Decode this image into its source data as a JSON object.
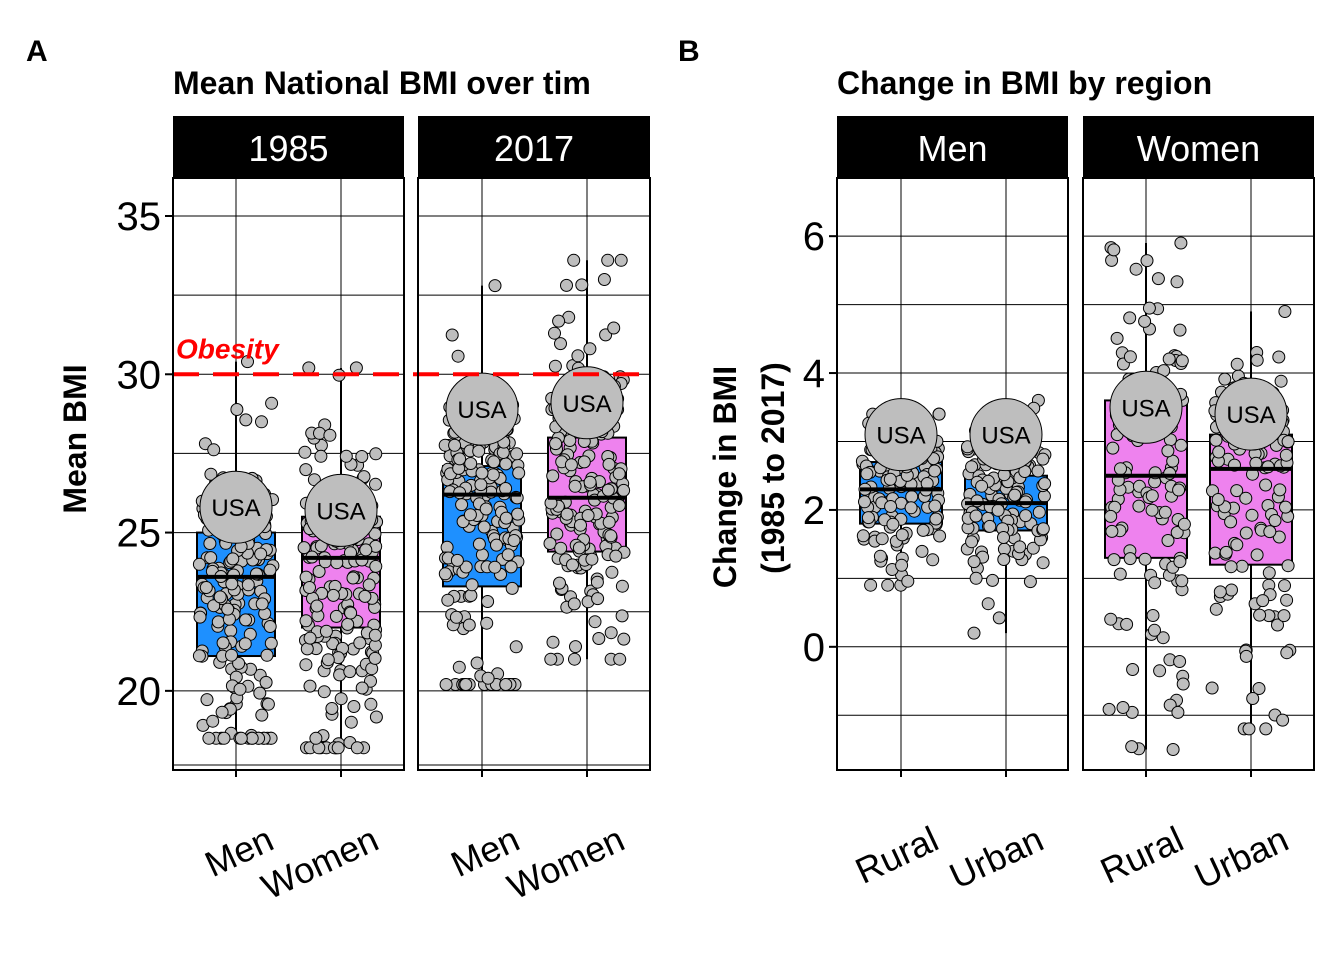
{
  "panels": {
    "a_label": "A",
    "b_label": "B"
  },
  "colors": {
    "men_box": "#1E90FF",
    "women_box": "#EE82EE",
    "point_fill": "#BEBEBE",
    "strip_bg": "#000000",
    "obesity_line": "#FF0000",
    "usa_circle": "#BEBEBE"
  },
  "chart_data": [
    {
      "type": "box",
      "title": "Mean National BMI over tim",
      "ylabel": "Mean BMI",
      "ylim": [
        17.5,
        36.2
      ],
      "yticks": [
        20,
        25,
        30,
        35
      ],
      "facets": [
        "1985",
        "2017"
      ],
      "categories": [
        "Men",
        "Women"
      ],
      "reference_line": {
        "y": 30,
        "label": "Obesity",
        "style": "dashed",
        "color": "#FF0000"
      },
      "highlight": "USA",
      "boxes": [
        {
          "facet": "1985",
          "category": "Men",
          "q1": 21.1,
          "median": 23.6,
          "q3": 25.0,
          "whisker_low": 18.5,
          "whisker_high": 30.4,
          "usa": 25.8,
          "n": 190
        },
        {
          "facet": "1985",
          "category": "Women",
          "q1": 22.0,
          "median": 24.2,
          "q3": 25.5,
          "whisker_low": 18.2,
          "whisker_high": 30.2,
          "usa": 25.7,
          "n": 190
        },
        {
          "facet": "2017",
          "category": "Men",
          "q1": 23.3,
          "median": 26.2,
          "q3": 27.1,
          "whisker_low": 20.2,
          "whisker_high": 32.8,
          "usa": 28.9,
          "n": 190
        },
        {
          "facet": "2017",
          "category": "Women",
          "q1": 24.4,
          "median": 26.1,
          "q3": 28.0,
          "whisker_low": 21.0,
          "whisker_high": 33.6,
          "usa": 29.1,
          "n": 190
        }
      ]
    },
    {
      "type": "box",
      "title": "Change in BMI by region",
      "ylabel_lines": [
        "Change in BMI",
        "(1985 to 2017)"
      ],
      "ylim": [
        -1.8,
        6.85
      ],
      "yticks": [
        0,
        2,
        4,
        6
      ],
      "facets": [
        "Men",
        "Women"
      ],
      "categories": [
        "Rural",
        "Urban"
      ],
      "highlight": "USA",
      "boxes": [
        {
          "facet": "Men",
          "category": "Rural",
          "q1": 1.8,
          "median": 2.3,
          "q3": 2.7,
          "whisker_low": 0.9,
          "whisker_high": 3.4,
          "usa": 3.1,
          "n": 130
        },
        {
          "facet": "Men",
          "category": "Urban",
          "q1": 1.7,
          "median": 2.1,
          "q3": 2.5,
          "whisker_low": 0.2,
          "whisker_high": 3.6,
          "usa": 3.1,
          "n": 130
        },
        {
          "facet": "Women",
          "category": "Rural",
          "q1": 1.3,
          "median": 2.5,
          "q3": 3.6,
          "whisker_low": -1.5,
          "whisker_high": 5.9,
          "usa": 3.5,
          "n": 130
        },
        {
          "facet": "Women",
          "category": "Urban",
          "q1": 1.2,
          "median": 2.6,
          "q3": 3.1,
          "whisker_low": -1.2,
          "whisker_high": 4.9,
          "usa": 3.4,
          "n": 130
        }
      ]
    }
  ]
}
